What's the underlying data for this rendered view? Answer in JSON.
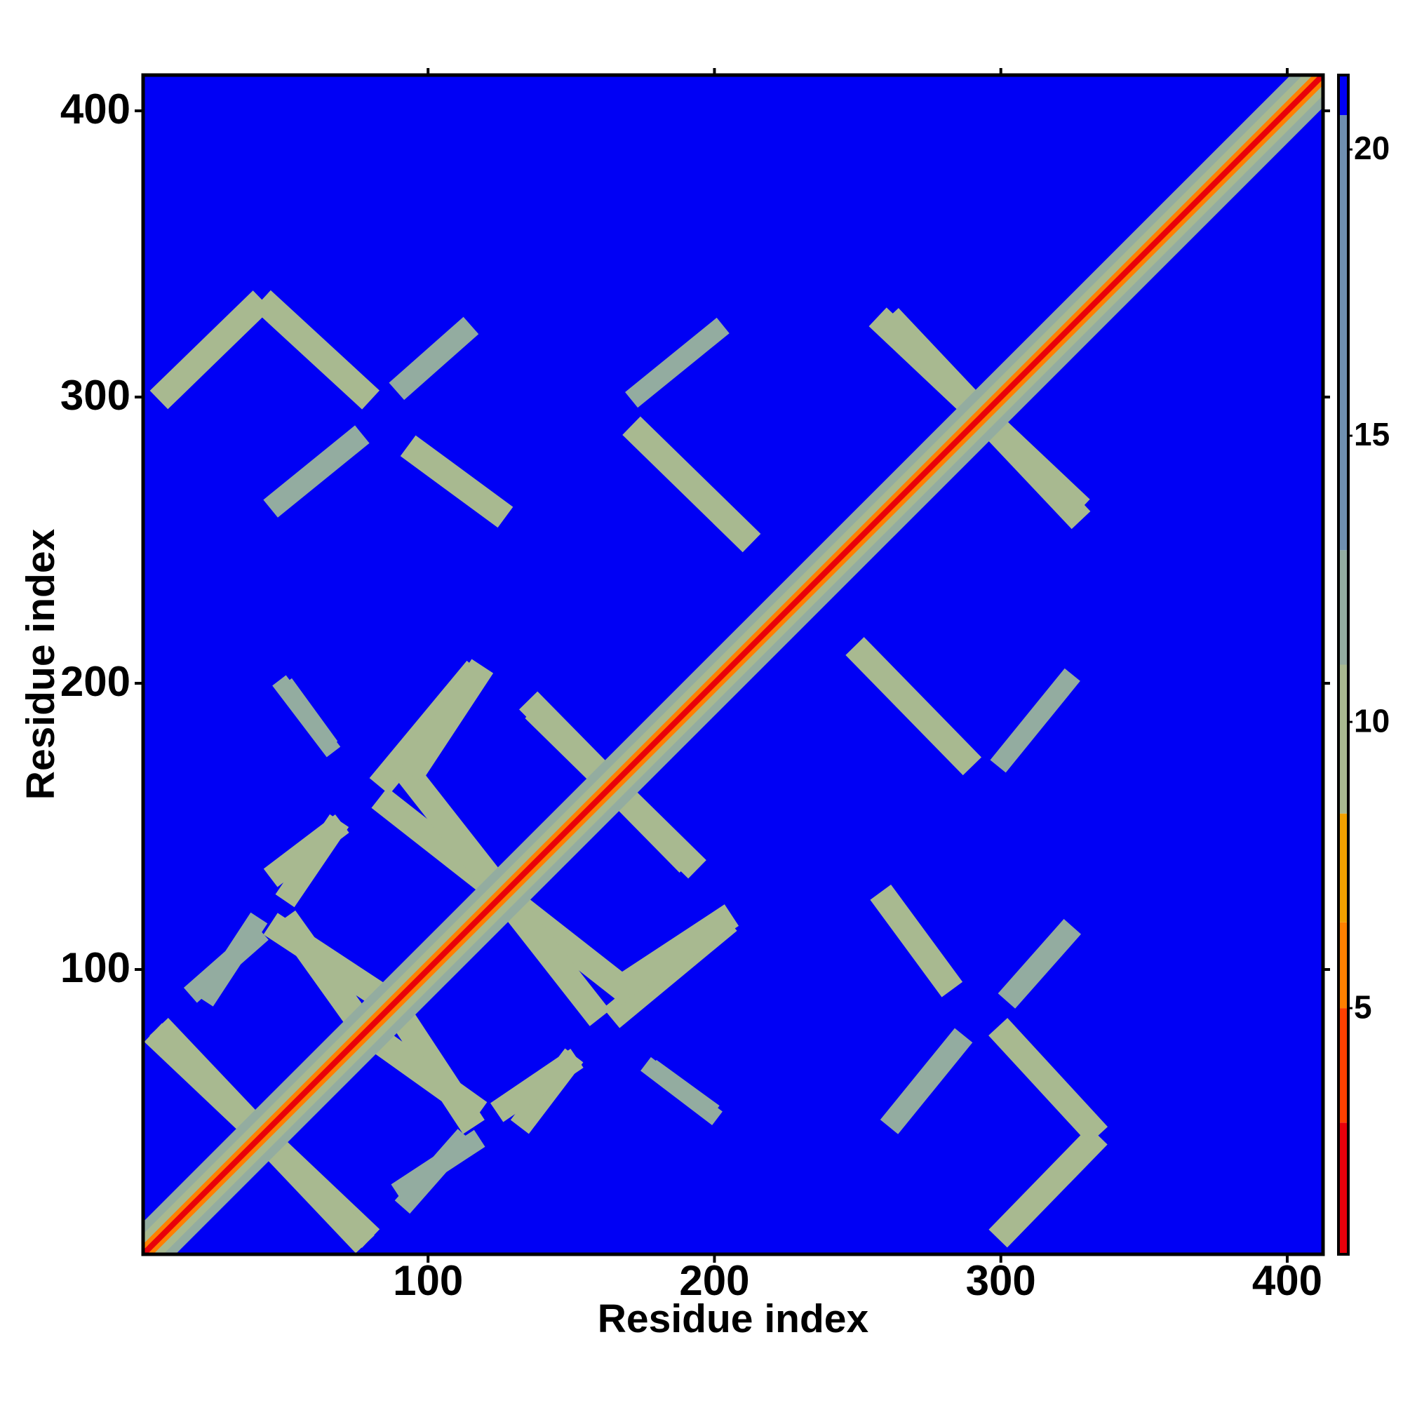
{
  "chart_data": {
    "type": "heatmap",
    "x_label": "Residue index",
    "y_label": "Residue index",
    "xlim": [
      0.5,
      412.5
    ],
    "ylim": [
      0.5,
      412.5
    ],
    "xticks": [
      100,
      200,
      300,
      400
    ],
    "yticks": [
      100,
      200,
      300,
      400
    ],
    "symmetric": true,
    "background_value": 21,
    "colorbar": {
      "lim": [
        0.7,
        21.3
      ],
      "ticks": [
        5,
        10,
        15,
        20
      ],
      "breaks": [
        0.7,
        3,
        5,
        6.5,
        8.4,
        11,
        13,
        20.6,
        21.3
      ],
      "colors": [
        "#e8000b",
        "#ff4000",
        "#ff8000",
        "#f0a000",
        "#a8b990",
        "#93aca0",
        "#6f8fb0",
        "#0000f5"
      ]
    },
    "bands": [
      {
        "from": [
          6,
          299
        ],
        "to": [
          42,
          334
        ],
        "width": 9,
        "value": 10
      },
      {
        "from": [
          42,
          334
        ],
        "to": [
          80,
          299
        ],
        "width": 9,
        "value": 10
      },
      {
        "from": [
          89,
          302
        ],
        "to": [
          115,
          325
        ],
        "width": 8,
        "value": 12
      },
      {
        "from": [
          45,
          261
        ],
        "to": [
          77,
          287
        ],
        "width": 8,
        "value": 12
      },
      {
        "from": [
          93,
          283
        ],
        "to": [
          127,
          258
        ],
        "width": 9,
        "value": 10
      },
      {
        "from": [
          171,
          290
        ],
        "to": [
          213,
          249
        ],
        "width": 9,
        "value": 10
      },
      {
        "from": [
          171,
          299
        ],
        "to": [
          203,
          325
        ],
        "width": 7,
        "value": 12
      },
      {
        "from": [
          257,
          328
        ],
        "to": [
          328,
          261
        ],
        "width": 9,
        "value": 10
      },
      {
        "from": [
          83,
          164
        ],
        "to": [
          117,
          205
        ],
        "width": 9,
        "value": 10
      },
      {
        "from": [
          83,
          160
        ],
        "to": [
          171,
          91
        ],
        "width": 9,
        "value": 10
      },
      {
        "from": [
          137,
          191
        ],
        "to": [
          194,
          135
        ],
        "width": 9,
        "value": 10
      },
      {
        "from": [
          45,
          116
        ],
        "to": [
          83,
          91
        ],
        "width": 9,
        "value": 10
      },
      {
        "from": [
          45,
          132
        ],
        "to": [
          70,
          151
        ],
        "width": 8,
        "value": 11
      },
      {
        "from": [
          168,
          94
        ],
        "to": [
          206,
          119
        ],
        "width": 9,
        "value": 10
      },
      {
        "from": [
          4,
          78
        ],
        "to": [
          80,
          6
        ],
        "width": 9,
        "value": 10
      },
      {
        "from": [
          83,
          75
        ],
        "to": [
          118,
          50
        ],
        "width": 9,
        "value": 10
      },
      {
        "from": [
          124,
          50
        ],
        "to": [
          152,
          69
        ],
        "width": 8,
        "value": 10
      },
      {
        "from": [
          17,
          91
        ],
        "to": [
          42,
          113
        ],
        "width": 7,
        "value": 12
      },
      {
        "from": [
          48,
          201
        ],
        "to": [
          67,
          176
        ],
        "width": 6,
        "value": 12
      },
      {
        "from": [
          89,
          22
        ],
        "to": [
          118,
          41
        ],
        "width": 7,
        "value": 12
      },
      {
        "from": [
          178,
          66
        ],
        "to": [
          200,
          50
        ],
        "width": 6,
        "value": 12
      },
      {
        "from": [
          1,
          1
        ],
        "to": [
          412,
          412
        ],
        "width": 16,
        "value": 12
      },
      {
        "from": [
          1,
          1
        ],
        "to": [
          412,
          412
        ],
        "width": 10,
        "value": 9.5
      },
      {
        "from": [
          1,
          1
        ],
        "to": [
          412,
          412
        ],
        "width": 5,
        "value": 6
      },
      {
        "from": [
          1,
          1
        ],
        "to": [
          412,
          412
        ],
        "width": 2,
        "value": 2
      }
    ]
  }
}
